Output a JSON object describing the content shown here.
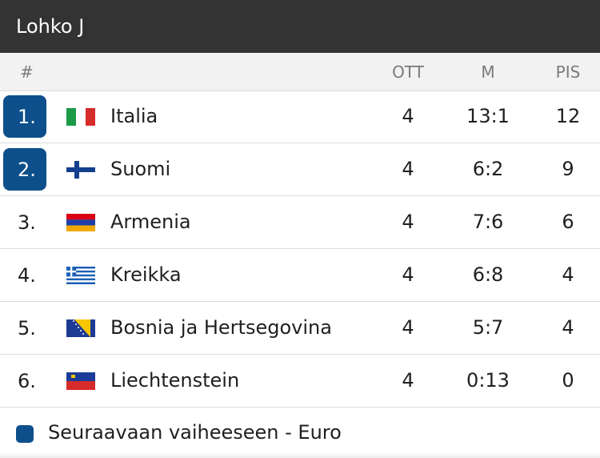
{
  "group": {
    "title": "Lohko J"
  },
  "columns": {
    "rank": "#",
    "played": "OTT",
    "goals": "M",
    "points": "PIS"
  },
  "rows": [
    {
      "rank": "1.",
      "team": "Italia",
      "flag": "italy-flag-icon",
      "played": "4",
      "goals": "13:1",
      "points": "12",
      "qualified": true
    },
    {
      "rank": "2.",
      "team": "Suomi",
      "flag": "finland-flag-icon",
      "played": "4",
      "goals": "6:2",
      "points": "9",
      "qualified": true
    },
    {
      "rank": "3.",
      "team": "Armenia",
      "flag": "armenia-flag-icon",
      "played": "4",
      "goals": "7:6",
      "points": "6",
      "qualified": false
    },
    {
      "rank": "4.",
      "team": "Kreikka",
      "flag": "greece-flag-icon",
      "played": "4",
      "goals": "6:8",
      "points": "4",
      "qualified": false
    },
    {
      "rank": "5.",
      "team": "Bosnia ja Hertsegovina",
      "flag": "bosnia-herzegovina-flag-icon",
      "played": "4",
      "goals": "5:7",
      "points": "4",
      "qualified": false
    },
    {
      "rank": "6.",
      "team": "Liechtenstein",
      "flag": "liechtenstein-flag-icon",
      "played": "4",
      "goals": "0:13",
      "points": "0",
      "qualified": false
    }
  ],
  "legend": {
    "label": "Seuraavaan vaiheeseen - Euro",
    "color": "#0d4f8b"
  },
  "colors": {
    "header_bg": "#333333",
    "qualified": "#0d4f8b"
  }
}
